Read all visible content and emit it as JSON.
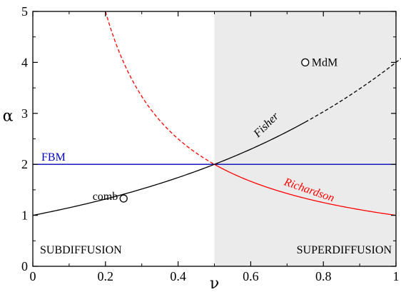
{
  "chart_data": {
    "type": "line",
    "xlabel": "ν",
    "ylabel": "α",
    "xlim": [
      0,
      1
    ],
    "ylim": [
      0,
      5
    ],
    "xticks": [
      0,
      0.2,
      0.4,
      0.6,
      0.8,
      1
    ],
    "xtick_labels": [
      "0",
      "0.2",
      "0.4",
      "0.6",
      "0.8",
      "1"
    ],
    "yticks": [
      0,
      1,
      2,
      3,
      4,
      5
    ],
    "ytick_labels": [
      "0",
      "1",
      "2",
      "3",
      "4",
      "5"
    ],
    "grid": false,
    "shaded_region": {
      "x_from": 0.5,
      "x_to": 1,
      "color": "#ebebeb"
    },
    "series": [
      {
        "name": "Fisher",
        "color": "#000000",
        "style": "solid",
        "function": "alpha = 2^(2*nu)",
        "x": [
          0,
          0.1,
          0.2,
          0.25,
          0.3,
          0.4,
          0.5,
          0.6,
          0.7,
          0.75
        ],
        "values": [
          1,
          1.149,
          1.32,
          1.414,
          1.516,
          1.741,
          2,
          2.297,
          2.639,
          2.828
        ],
        "dashed_continuation": {
          "x": [
            0.75,
            0.8
          ],
          "values": [
            2.828,
            3.03
          ]
        }
      },
      {
        "name": "Richardson",
        "color": "#ff0000",
        "style": "solid",
        "function": "alpha = 1/nu",
        "x": [
          0.5,
          0.6,
          0.7,
          0.8,
          0.9,
          1
        ],
        "values": [
          2,
          1.667,
          1.429,
          1.25,
          1.111,
          1
        ],
        "dashed_continuation": {
          "x": [
            0.2,
            0.3,
            0.4,
            0.5
          ],
          "values": [
            5,
            3.333,
            2.5,
            2
          ]
        }
      },
      {
        "name": "FBM",
        "color": "#0000bb",
        "style": "solid",
        "x": [
          0,
          1
        ],
        "values": [
          2,
          2
        ]
      }
    ],
    "points": [
      {
        "label": "comb",
        "x": 0.25,
        "y": 1.33
      },
      {
        "label": "MdM",
        "x": 0.75,
        "y": 4
      }
    ],
    "annotations": [
      {
        "text": "SUBDIFFUSION"
      },
      {
        "text": "SUPERDIFFUSION"
      }
    ]
  }
}
